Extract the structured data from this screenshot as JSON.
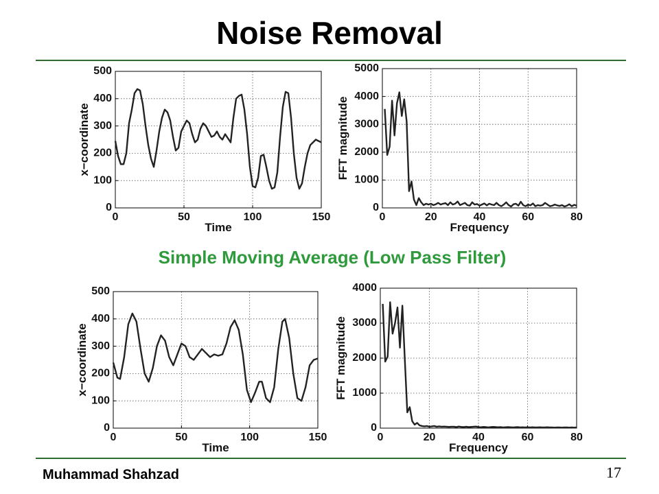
{
  "slide": {
    "title": "Noise Removal",
    "caption": "Simple Moving Average (Low Pass Filter)",
    "author": "Muhammad Shahzad",
    "page": "17"
  },
  "chart_data": [
    {
      "type": "line",
      "xlabel": "Time",
      "ylabel": "x−coordinate",
      "color": "#222222",
      "grid": true,
      "xlim": [
        0,
        150
      ],
      "ylim": [
        0,
        500
      ],
      "xticks": [
        0,
        50,
        100,
        150
      ],
      "yticks": [
        0,
        100,
        200,
        300,
        400,
        500
      ],
      "x": [
        0,
        2,
        4,
        6,
        8,
        10,
        12,
        14,
        16,
        18,
        20,
        22,
        24,
        26,
        28,
        30,
        32,
        34,
        36,
        38,
        40,
        42,
        44,
        46,
        48,
        50,
        52,
        54,
        56,
        58,
        60,
        62,
        64,
        66,
        68,
        70,
        72,
        74,
        76,
        78,
        80,
        82,
        84,
        86,
        88,
        90,
        92,
        94,
        96,
        98,
        100,
        102,
        104,
        106,
        108,
        110,
        112,
        114,
        116,
        118,
        120,
        122,
        124,
        126,
        128,
        130,
        132,
        134,
        136,
        138,
        140,
        142,
        144,
        146,
        148,
        150
      ],
      "values": [
        245,
        190,
        160,
        160,
        200,
        310,
        360,
        420,
        435,
        430,
        380,
        300,
        230,
        180,
        150,
        210,
        280,
        330,
        360,
        350,
        320,
        260,
        210,
        220,
        280,
        300,
        320,
        310,
        270,
        240,
        250,
        290,
        310,
        300,
        280,
        260,
        265,
        280,
        260,
        250,
        270,
        255,
        240,
        330,
        400,
        410,
        415,
        360,
        270,
        150,
        80,
        75,
        110,
        190,
        195,
        150,
        100,
        70,
        75,
        130,
        260,
        370,
        425,
        420,
        330,
        200,
        110,
        70,
        90,
        150,
        200,
        230,
        240,
        250,
        245,
        240
      ]
    },
    {
      "type": "line",
      "xlabel": "Frequency",
      "ylabel": "FFT magnitude",
      "color": "#222222",
      "grid": true,
      "xlim": [
        0,
        80
      ],
      "ylim": [
        0,
        5000
      ],
      "xticks": [
        0,
        20,
        40,
        60,
        80
      ],
      "yticks": [
        0,
        1000,
        2000,
        3000,
        4000,
        5000
      ],
      "x": [
        1,
        2,
        3,
        4,
        5,
        6,
        7,
        8,
        9,
        10,
        11,
        12,
        13,
        14,
        15,
        16,
        17,
        18,
        19,
        20,
        21,
        22,
        23,
        24,
        25,
        26,
        27,
        28,
        29,
        30,
        31,
        32,
        33,
        34,
        35,
        36,
        37,
        38,
        39,
        40,
        41,
        42,
        43,
        44,
        45,
        46,
        47,
        48,
        49,
        50,
        51,
        52,
        53,
        54,
        55,
        56,
        57,
        58,
        59,
        60,
        61,
        62,
        63,
        64,
        65,
        66,
        67,
        68,
        69,
        70,
        71,
        72,
        73,
        74,
        75,
        76,
        77,
        78,
        79,
        80
      ],
      "values": [
        3550,
        1900,
        2200,
        3850,
        2600,
        3750,
        4150,
        3300,
        3900,
        3100,
        600,
        950,
        300,
        100,
        350,
        200,
        100,
        150,
        120,
        150,
        100,
        130,
        180,
        120,
        150,
        170,
        100,
        200,
        120,
        150,
        230,
        100,
        140,
        180,
        100,
        80,
        200,
        120,
        140,
        80,
        120,
        160,
        90,
        150,
        120,
        100,
        180,
        100,
        60,
        120,
        200,
        100,
        50,
        130,
        150,
        80,
        220,
        100,
        60,
        120,
        90,
        160,
        60,
        100,
        80,
        100,
        180,
        120,
        60,
        80,
        120,
        90,
        70,
        100,
        50,
        80,
        130,
        60,
        110,
        80
      ]
    },
    {
      "type": "line",
      "xlabel": "Time",
      "ylabel": "x−coordinate",
      "color": "#222222",
      "grid": true,
      "xlim": [
        0,
        150
      ],
      "ylim": [
        0,
        500
      ],
      "xticks": [
        0,
        50,
        100,
        150
      ],
      "yticks": [
        0,
        100,
        200,
        300,
        400,
        500
      ],
      "x": [
        0,
        3,
        5,
        8,
        11,
        14,
        17,
        20,
        23,
        26,
        29,
        32,
        35,
        38,
        41,
        44,
        47,
        50,
        53,
        56,
        59,
        62,
        65,
        68,
        71,
        74,
        77,
        80,
        83,
        86,
        89,
        92,
        95,
        98,
        101,
        104,
        107,
        109,
        112,
        115,
        118,
        121,
        124,
        126,
        129,
        132,
        135,
        138,
        141,
        144,
        147,
        150
      ],
      "values": [
        240,
        185,
        180,
        260,
        380,
        420,
        390,
        290,
        200,
        170,
        220,
        300,
        340,
        320,
        260,
        230,
        270,
        310,
        300,
        260,
        250,
        270,
        290,
        275,
        260,
        270,
        265,
        270,
        310,
        370,
        395,
        360,
        270,
        140,
        95,
        130,
        170,
        170,
        110,
        95,
        150,
        290,
        390,
        400,
        330,
        200,
        110,
        100,
        150,
        230,
        250,
        255
      ]
    },
    {
      "type": "line",
      "xlabel": "Frequency",
      "ylabel": "FFT magnitude",
      "color": "#222222",
      "grid": true,
      "xlim": [
        0,
        80
      ],
      "ylim": [
        0,
        4000
      ],
      "xticks": [
        0,
        20,
        40,
        60,
        80
      ],
      "yticks": [
        0,
        1000,
        2000,
        3000,
        4000
      ],
      "x": [
        1,
        2,
        3,
        4,
        5,
        6,
        7,
        8,
        9,
        10,
        11,
        12,
        13,
        14,
        15,
        16,
        17,
        18,
        19,
        20,
        21,
        22,
        23,
        24,
        25,
        26,
        27,
        28,
        29,
        30,
        31,
        32,
        33,
        34,
        35,
        36,
        37,
        38,
        39,
        40,
        41,
        42,
        43,
        44,
        45,
        46,
        47,
        48,
        49,
        50,
        51,
        52,
        53,
        54,
        55,
        56,
        57,
        58,
        59,
        60,
        61,
        62,
        63,
        64,
        65,
        66,
        67,
        68,
        69,
        70,
        71,
        72,
        73,
        74,
        75,
        76,
        77,
        78,
        79,
        80
      ],
      "values": [
        3550,
        1900,
        2050,
        3600,
        2700,
        3000,
        3450,
        2300,
        3500,
        1950,
        450,
        600,
        200,
        100,
        150,
        80,
        60,
        50,
        60,
        40,
        50,
        60,
        40,
        50,
        40,
        45,
        40,
        35,
        40,
        40,
        30,
        45,
        35,
        30,
        40,
        30,
        35,
        40,
        45,
        30,
        25,
        35,
        30,
        20,
        30,
        35,
        30,
        25,
        30,
        20,
        25,
        30,
        25,
        20,
        25,
        30,
        20,
        25,
        20,
        25,
        20,
        25,
        20,
        20,
        25,
        20,
        20,
        25,
        20,
        20,
        15,
        20,
        20,
        15,
        20,
        20,
        15,
        20,
        15,
        20
      ]
    }
  ]
}
